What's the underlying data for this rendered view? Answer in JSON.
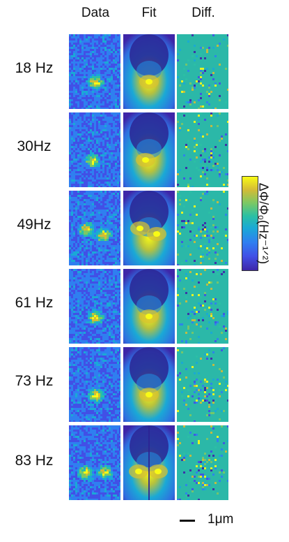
{
  "columns": [
    "Data",
    "Fit",
    "Diff."
  ],
  "rows": [
    {
      "label": "18 Hz",
      "pattern": "single"
    },
    {
      "label": "30Hz",
      "pattern": "rotated"
    },
    {
      "label": "49Hz",
      "pattern": "double-tilted"
    },
    {
      "label": "61 Hz",
      "pattern": "single"
    },
    {
      "label": "73 Hz",
      "pattern": "single"
    },
    {
      "label": "83 Hz",
      "pattern": "double"
    }
  ],
  "colorbar": {
    "label": "ΔΦ/Φ₀(Hz⁻¹ᐟ²)",
    "colormap": "parula",
    "low_color": "#3e26a8",
    "high_color": "#f9fb15"
  },
  "scale_bar": {
    "label": "1μm"
  }
}
